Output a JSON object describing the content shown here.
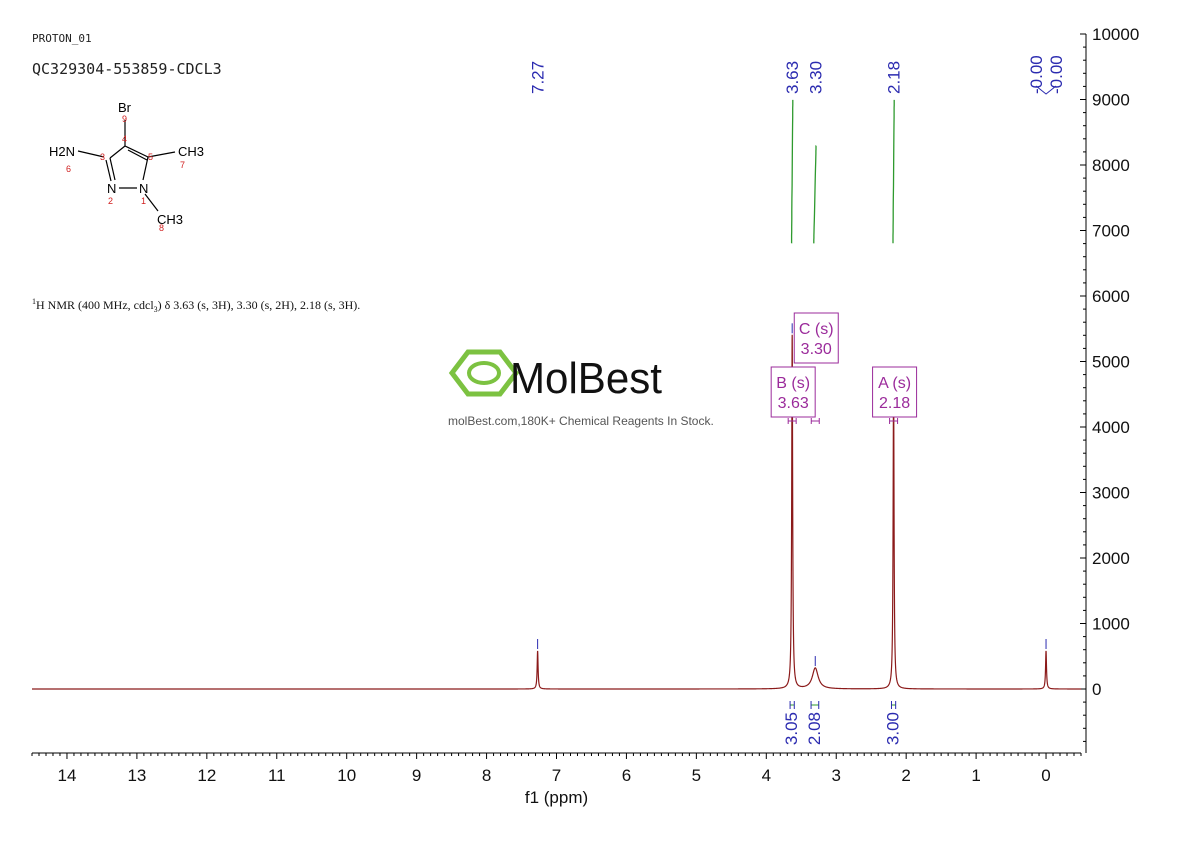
{
  "header": {
    "experiment": "PROTON_01",
    "sample": "QC329304-553859-CDCL3"
  },
  "structure": {
    "atoms": [
      "Br",
      "H2N",
      "CH3",
      "N",
      "N",
      "CH3"
    ],
    "numbering": [
      "1",
      "2",
      "3",
      "4",
      "5",
      "6",
      "7",
      "8",
      "9"
    ]
  },
  "nmr_text": {
    "prefix": "1",
    "body": "H NMR (400 MHz, cdcl",
    "sub": "3",
    "rest": ") δ 3.63 (s, 3H), 3.30 (s, 2H), 2.18 (s, 3H)."
  },
  "watermark": {
    "brand": "MolBest",
    "tagline": "molBest.com,180K+ Chemical Reagents In Stock."
  },
  "colors": {
    "spectrum": "#8b1a1a",
    "peak_labels": "#2b2bb0",
    "integral": "#2e9a2e",
    "multiplet_box": "#9b2b9b",
    "axis": "#000000",
    "brand": "#7cc241"
  },
  "chart_data": {
    "type": "line",
    "title": "",
    "xlabel": "f1 (ppm)",
    "ylabel": "",
    "x_reversed": true,
    "xlim": [
      14.5,
      -0.5
    ],
    "ylim": [
      -1000,
      10000
    ],
    "x_ticks": [
      "14",
      "13",
      "12",
      "11",
      "10",
      "9",
      "8",
      "7",
      "6",
      "5",
      "4",
      "3",
      "2",
      "1",
      "0"
    ],
    "y_ticks": [
      "0",
      "1000",
      "2000",
      "3000",
      "4000",
      "5000",
      "6000",
      "7000",
      "8000",
      "9000",
      "10000"
    ],
    "baseline": 0,
    "peaks": [
      {
        "ppm": 7.27,
        "height": 580,
        "width": 0.008
      },
      {
        "ppm": 3.63,
        "height": 5400,
        "width": 0.008
      },
      {
        "ppm": 3.3,
        "height": 320,
        "width": 0.05
      },
      {
        "ppm": 2.18,
        "height": 4700,
        "width": 0.008
      },
      {
        "ppm": 0.0,
        "height": 580,
        "width": 0.008
      }
    ],
    "peak_labels": [
      {
        "ppm": 7.27,
        "label": "7.27"
      },
      {
        "ppm": 3.63,
        "label": "3.63"
      },
      {
        "ppm": 3.3,
        "label": "3.30"
      },
      {
        "ppm": 2.18,
        "label": "2.18"
      },
      {
        "ppm": 0.0,
        "label": "-0.00"
      },
      {
        "ppm": 0.0,
        "label": "-0.00"
      }
    ],
    "integrals": [
      {
        "from": 3.66,
        "to": 3.6,
        "start": 6800,
        "end": 9000,
        "value": "3.05"
      },
      {
        "from": 3.36,
        "to": 3.25,
        "start": 6800,
        "end": 8300,
        "value": "2.08"
      },
      {
        "from": 2.21,
        "to": 2.15,
        "start": 6800,
        "end": 9000,
        "value": "3.00"
      }
    ],
    "multiplets": [
      {
        "id": "B",
        "mult": "B (s)",
        "shift": "3.63",
        "ppm": 3.63,
        "y": 4900
      },
      {
        "id": "C",
        "mult": "C (s)",
        "shift": "3.30",
        "ppm": 3.3,
        "y": 5500
      },
      {
        "id": "A",
        "mult": "A (s)",
        "shift": "2.18",
        "ppm": 2.18,
        "y": 4900
      }
    ]
  }
}
